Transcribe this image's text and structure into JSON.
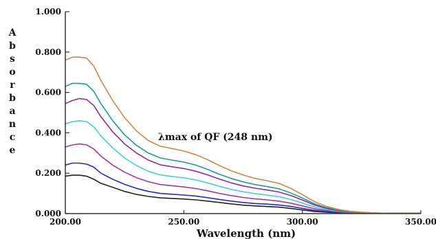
{
  "chart_data": {
    "type": "line",
    "title": "",
    "xlabel": "Wavelength (nm)",
    "ylabel": "Absorbance",
    "xlim": [
      200,
      350
    ],
    "ylim": [
      0,
      1
    ],
    "x_ticks": [
      "200.00",
      "250.00",
      "300.00",
      "350.00"
    ],
    "y_ticks": [
      "0.000",
      "0.200",
      "0.400",
      "0.600",
      "0.800",
      "1.000"
    ],
    "annotation": "λmax of  QF (248 nm)",
    "grid": false,
    "legend": "none",
    "x": [
      200,
      203,
      206,
      209,
      212,
      215,
      220,
      225,
      230,
      235,
      240,
      245,
      250,
      255,
      260,
      265,
      270,
      275,
      280,
      285,
      290,
      295,
      300,
      305,
      310,
      315,
      320,
      325,
      330,
      335,
      340,
      345,
      350
    ],
    "series": [
      {
        "color": "#222222",
        "values": [
          0.185,
          0.19,
          0.19,
          0.185,
          0.17,
          0.15,
          0.13,
          0.11,
          0.095,
          0.085,
          0.078,
          0.075,
          0.072,
          0.068,
          0.062,
          0.055,
          0.048,
          0.042,
          0.038,
          0.035,
          0.032,
          0.026,
          0.018,
          0.011,
          0.007,
          0.004,
          0.002,
          0.001,
          0.001,
          0.001,
          0.001,
          0.001,
          0.001
        ]
      },
      {
        "color": "#2b2bb0",
        "values": [
          0.24,
          0.25,
          0.25,
          0.245,
          0.23,
          0.2,
          0.17,
          0.145,
          0.125,
          0.11,
          0.1,
          0.096,
          0.092,
          0.087,
          0.079,
          0.07,
          0.062,
          0.055,
          0.05,
          0.047,
          0.043,
          0.036,
          0.026,
          0.016,
          0.01,
          0.006,
          0.003,
          0.002,
          0.001,
          0.001,
          0.001,
          0.001,
          0.001
        ]
      },
      {
        "color": "#a0379e",
        "values": [
          0.33,
          0.34,
          0.345,
          0.34,
          0.32,
          0.285,
          0.24,
          0.205,
          0.178,
          0.158,
          0.144,
          0.138,
          0.132,
          0.124,
          0.113,
          0.1,
          0.089,
          0.08,
          0.073,
          0.068,
          0.062,
          0.052,
          0.038,
          0.024,
          0.015,
          0.009,
          0.005,
          0.003,
          0.002,
          0.001,
          0.001,
          0.001,
          0.001
        ]
      },
      {
        "color": "#4ec9d9",
        "values": [
          0.445,
          0.455,
          0.46,
          0.455,
          0.43,
          0.385,
          0.325,
          0.275,
          0.238,
          0.21,
          0.192,
          0.184,
          0.177,
          0.167,
          0.152,
          0.135,
          0.12,
          0.108,
          0.099,
          0.092,
          0.084,
          0.07,
          0.052,
          0.033,
          0.02,
          0.012,
          0.007,
          0.004,
          0.002,
          0.001,
          0.001,
          0.001,
          0.001
        ]
      },
      {
        "color": "#8e2a9a",
        "values": [
          0.545,
          0.56,
          0.57,
          0.565,
          0.535,
          0.48,
          0.405,
          0.345,
          0.3,
          0.265,
          0.242,
          0.232,
          0.223,
          0.21,
          0.192,
          0.171,
          0.152,
          0.137,
          0.126,
          0.117,
          0.107,
          0.09,
          0.067,
          0.043,
          0.026,
          0.015,
          0.008,
          0.005,
          0.003,
          0.002,
          0.001,
          0.001,
          0.001
        ]
      },
      {
        "color": "#1f9a96",
        "values": [
          0.63,
          0.645,
          0.645,
          0.64,
          0.605,
          0.545,
          0.46,
          0.39,
          0.338,
          0.3,
          0.276,
          0.265,
          0.255,
          0.24,
          0.219,
          0.195,
          0.174,
          0.157,
          0.144,
          0.134,
          0.123,
          0.103,
          0.077,
          0.049,
          0.03,
          0.018,
          0.01,
          0.006,
          0.003,
          0.002,
          0.001,
          0.001,
          0.001
        ]
      },
      {
        "color": "#c8894a",
        "values": [
          0.76,
          0.775,
          0.775,
          0.77,
          0.73,
          0.66,
          0.56,
          0.475,
          0.41,
          0.362,
          0.334,
          0.322,
          0.31,
          0.292,
          0.267,
          0.238,
          0.212,
          0.191,
          0.175,
          0.163,
          0.15,
          0.126,
          0.094,
          0.06,
          0.036,
          0.021,
          0.012,
          0.007,
          0.004,
          0.002,
          0.001,
          0.001,
          0.001
        ]
      }
    ]
  }
}
